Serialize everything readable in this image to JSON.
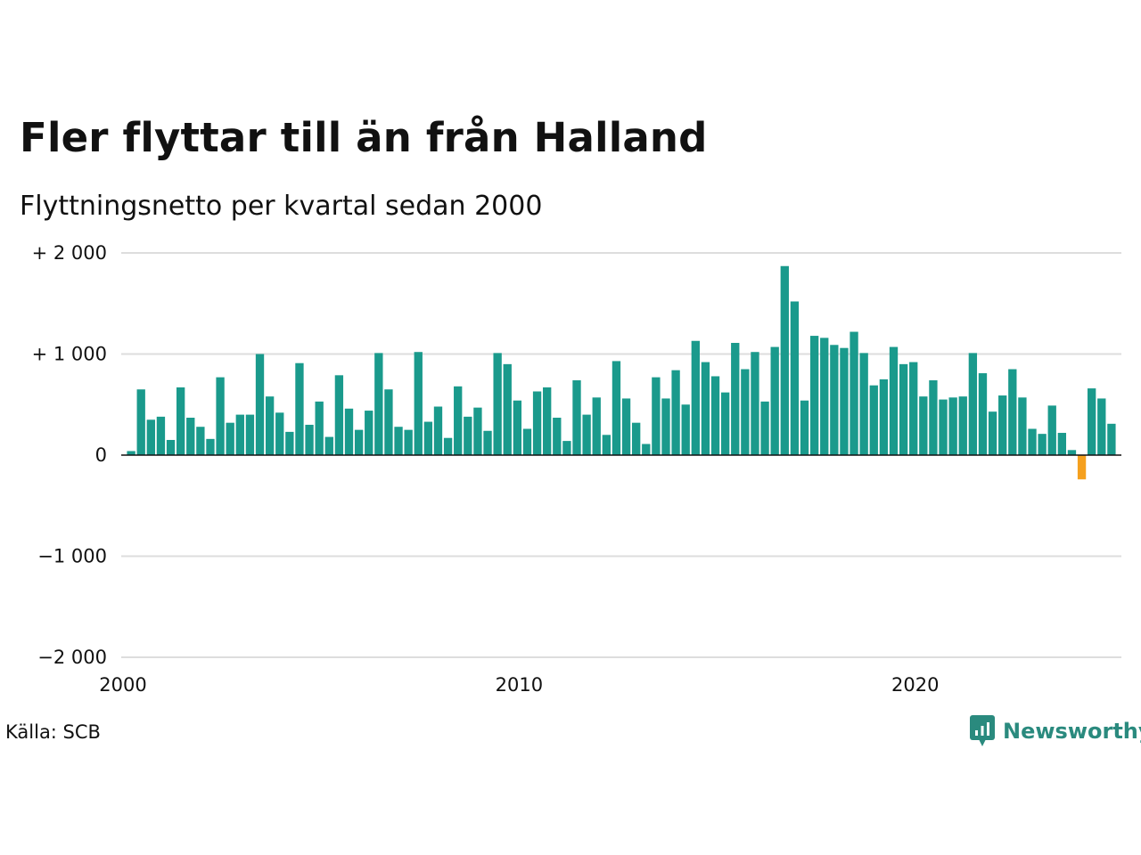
{
  "chart_data": {
    "type": "bar",
    "title": "Fler flyttar till än från Halland",
    "subtitle": "Flyttningsnetto per kvartal sedan 2000",
    "ylim": [
      -2000,
      2000
    ],
    "y_ticks": [
      {
        "value": 2000,
        "label": "+ 2 000"
      },
      {
        "value": 1000,
        "label": "+ 1 000"
      },
      {
        "value": 0,
        "label": "0"
      },
      {
        "value": -1000,
        "label": "−1 000"
      },
      {
        "value": -2000,
        "label": "−2 000"
      }
    ],
    "x_ticks": [
      {
        "value": 2000,
        "label": "2000"
      },
      {
        "value": 2010,
        "label": "2010"
      },
      {
        "value": 2020,
        "label": "2020"
      }
    ],
    "xlim": [
      2000,
      2025.25
    ],
    "grid": true,
    "legend": "none",
    "colors": {
      "positive": "#1a9a8c",
      "negative": "#f5a01e"
    },
    "start_quarter": "2000 Q1",
    "values": [
      40,
      650,
      350,
      380,
      150,
      670,
      370,
      280,
      160,
      770,
      320,
      400,
      400,
      1000,
      580,
      420,
      230,
      910,
      300,
      530,
      180,
      790,
      460,
      250,
      440,
      1010,
      650,
      280,
      250,
      1020,
      330,
      480,
      170,
      680,
      380,
      470,
      240,
      1010,
      900,
      540,
      260,
      630,
      670,
      370,
      140,
      740,
      400,
      570,
      200,
      930,
      560,
      320,
      110,
      770,
      560,
      840,
      500,
      1130,
      920,
      780,
      620,
      1110,
      850,
      1020,
      530,
      1070,
      1870,
      1520,
      540,
      1180,
      1160,
      1090,
      1060,
      1220,
      1010,
      690,
      750,
      1070,
      900,
      920,
      580,
      740,
      550,
      570,
      580,
      1010,
      810,
      430,
      590,
      850,
      570,
      260,
      210,
      490,
      220,
      50,
      -240,
      660,
      560,
      310
    ]
  },
  "footer": {
    "source": "Källa: SCB",
    "brand": "Newsworthy",
    "brand_color": "#2a8a7e"
  }
}
